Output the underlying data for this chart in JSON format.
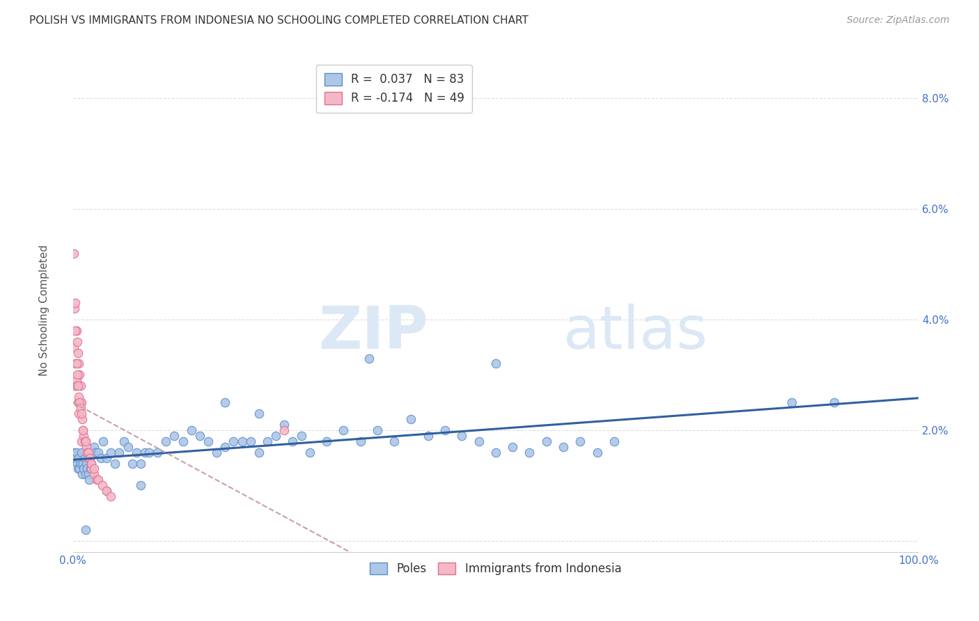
{
  "title": "POLISH VS IMMIGRANTS FROM INDONESIA NO SCHOOLING COMPLETED CORRELATION CHART",
  "source": "Source: ZipAtlas.com",
  "ylabel": "No Schooling Completed",
  "watermark_zip": "ZIP",
  "watermark_atlas": "atlas",
  "poles_R": 0.037,
  "poles_N": 83,
  "indo_R": -0.174,
  "indo_N": 49,
  "poles_color": "#aec6e8",
  "poles_edge_color": "#5b8fc9",
  "indo_color": "#f4b8c8",
  "indo_edge_color": "#e07090",
  "trend_poles_color": "#3060a0",
  "trend_indo_color": "#c8a0a8",
  "xlim": [
    0.0,
    1.0
  ],
  "ylim": [
    -0.002,
    0.088
  ],
  "bg_color": "#ffffff",
  "grid_color": "#dddddd",
  "marker_size": 80,
  "poles_x": [
    0.002,
    0.003,
    0.004,
    0.005,
    0.006,
    0.007,
    0.008,
    0.009,
    0.01,
    0.011,
    0.012,
    0.013,
    0.014,
    0.015,
    0.016,
    0.017,
    0.018,
    0.019,
    0.02,
    0.021,
    0.022,
    0.025,
    0.027,
    0.03,
    0.033,
    0.036,
    0.04,
    0.045,
    0.05,
    0.055,
    0.06,
    0.065,
    0.07,
    0.075,
    0.08,
    0.085,
    0.09,
    0.1,
    0.11,
    0.12,
    0.13,
    0.14,
    0.15,
    0.16,
    0.17,
    0.18,
    0.19,
    0.2,
    0.21,
    0.22,
    0.23,
    0.24,
    0.25,
    0.26,
    0.27,
    0.28,
    0.3,
    0.32,
    0.34,
    0.36,
    0.38,
    0.4,
    0.42,
    0.44,
    0.46,
    0.48,
    0.5,
    0.52,
    0.54,
    0.56,
    0.58,
    0.6,
    0.62,
    0.64,
    0.35,
    0.5,
    0.18,
    0.22,
    0.08,
    0.04,
    0.015,
    0.9,
    0.85
  ],
  "poles_y": [
    0.016,
    0.015,
    0.016,
    0.014,
    0.013,
    0.015,
    0.013,
    0.014,
    0.016,
    0.012,
    0.014,
    0.013,
    0.015,
    0.012,
    0.014,
    0.013,
    0.012,
    0.011,
    0.015,
    0.013,
    0.014,
    0.017,
    0.016,
    0.016,
    0.015,
    0.018,
    0.015,
    0.016,
    0.014,
    0.016,
    0.018,
    0.017,
    0.014,
    0.016,
    0.014,
    0.016,
    0.016,
    0.016,
    0.018,
    0.019,
    0.018,
    0.02,
    0.019,
    0.018,
    0.016,
    0.017,
    0.018,
    0.018,
    0.018,
    0.016,
    0.018,
    0.019,
    0.021,
    0.018,
    0.019,
    0.016,
    0.018,
    0.02,
    0.018,
    0.02,
    0.018,
    0.022,
    0.019,
    0.02,
    0.019,
    0.018,
    0.016,
    0.017,
    0.016,
    0.018,
    0.017,
    0.018,
    0.016,
    0.018,
    0.033,
    0.032,
    0.025,
    0.023,
    0.01,
    0.009,
    0.002,
    0.025,
    0.025
  ],
  "indo_x": [
    0.001,
    0.001,
    0.002,
    0.002,
    0.003,
    0.003,
    0.004,
    0.004,
    0.005,
    0.005,
    0.006,
    0.006,
    0.007,
    0.007,
    0.008,
    0.009,
    0.01,
    0.01,
    0.011,
    0.012,
    0.013,
    0.014,
    0.015,
    0.016,
    0.017,
    0.018,
    0.02,
    0.022,
    0.025,
    0.003,
    0.004,
    0.005,
    0.006,
    0.007,
    0.008,
    0.009,
    0.01,
    0.012,
    0.015,
    0.018,
    0.02,
    0.022,
    0.025,
    0.028,
    0.03,
    0.035,
    0.04,
    0.045,
    0.25
  ],
  "indo_y": [
    0.052,
    0.035,
    0.042,
    0.028,
    0.043,
    0.032,
    0.038,
    0.029,
    0.036,
    0.028,
    0.034,
    0.025,
    0.032,
    0.023,
    0.03,
    0.028,
    0.025,
    0.018,
    0.022,
    0.02,
    0.019,
    0.018,
    0.018,
    0.017,
    0.016,
    0.015,
    0.015,
    0.013,
    0.012,
    0.038,
    0.032,
    0.03,
    0.028,
    0.026,
    0.025,
    0.024,
    0.023,
    0.02,
    0.018,
    0.016,
    0.015,
    0.014,
    0.013,
    0.011,
    0.011,
    0.01,
    0.009,
    0.008,
    0.02
  ]
}
